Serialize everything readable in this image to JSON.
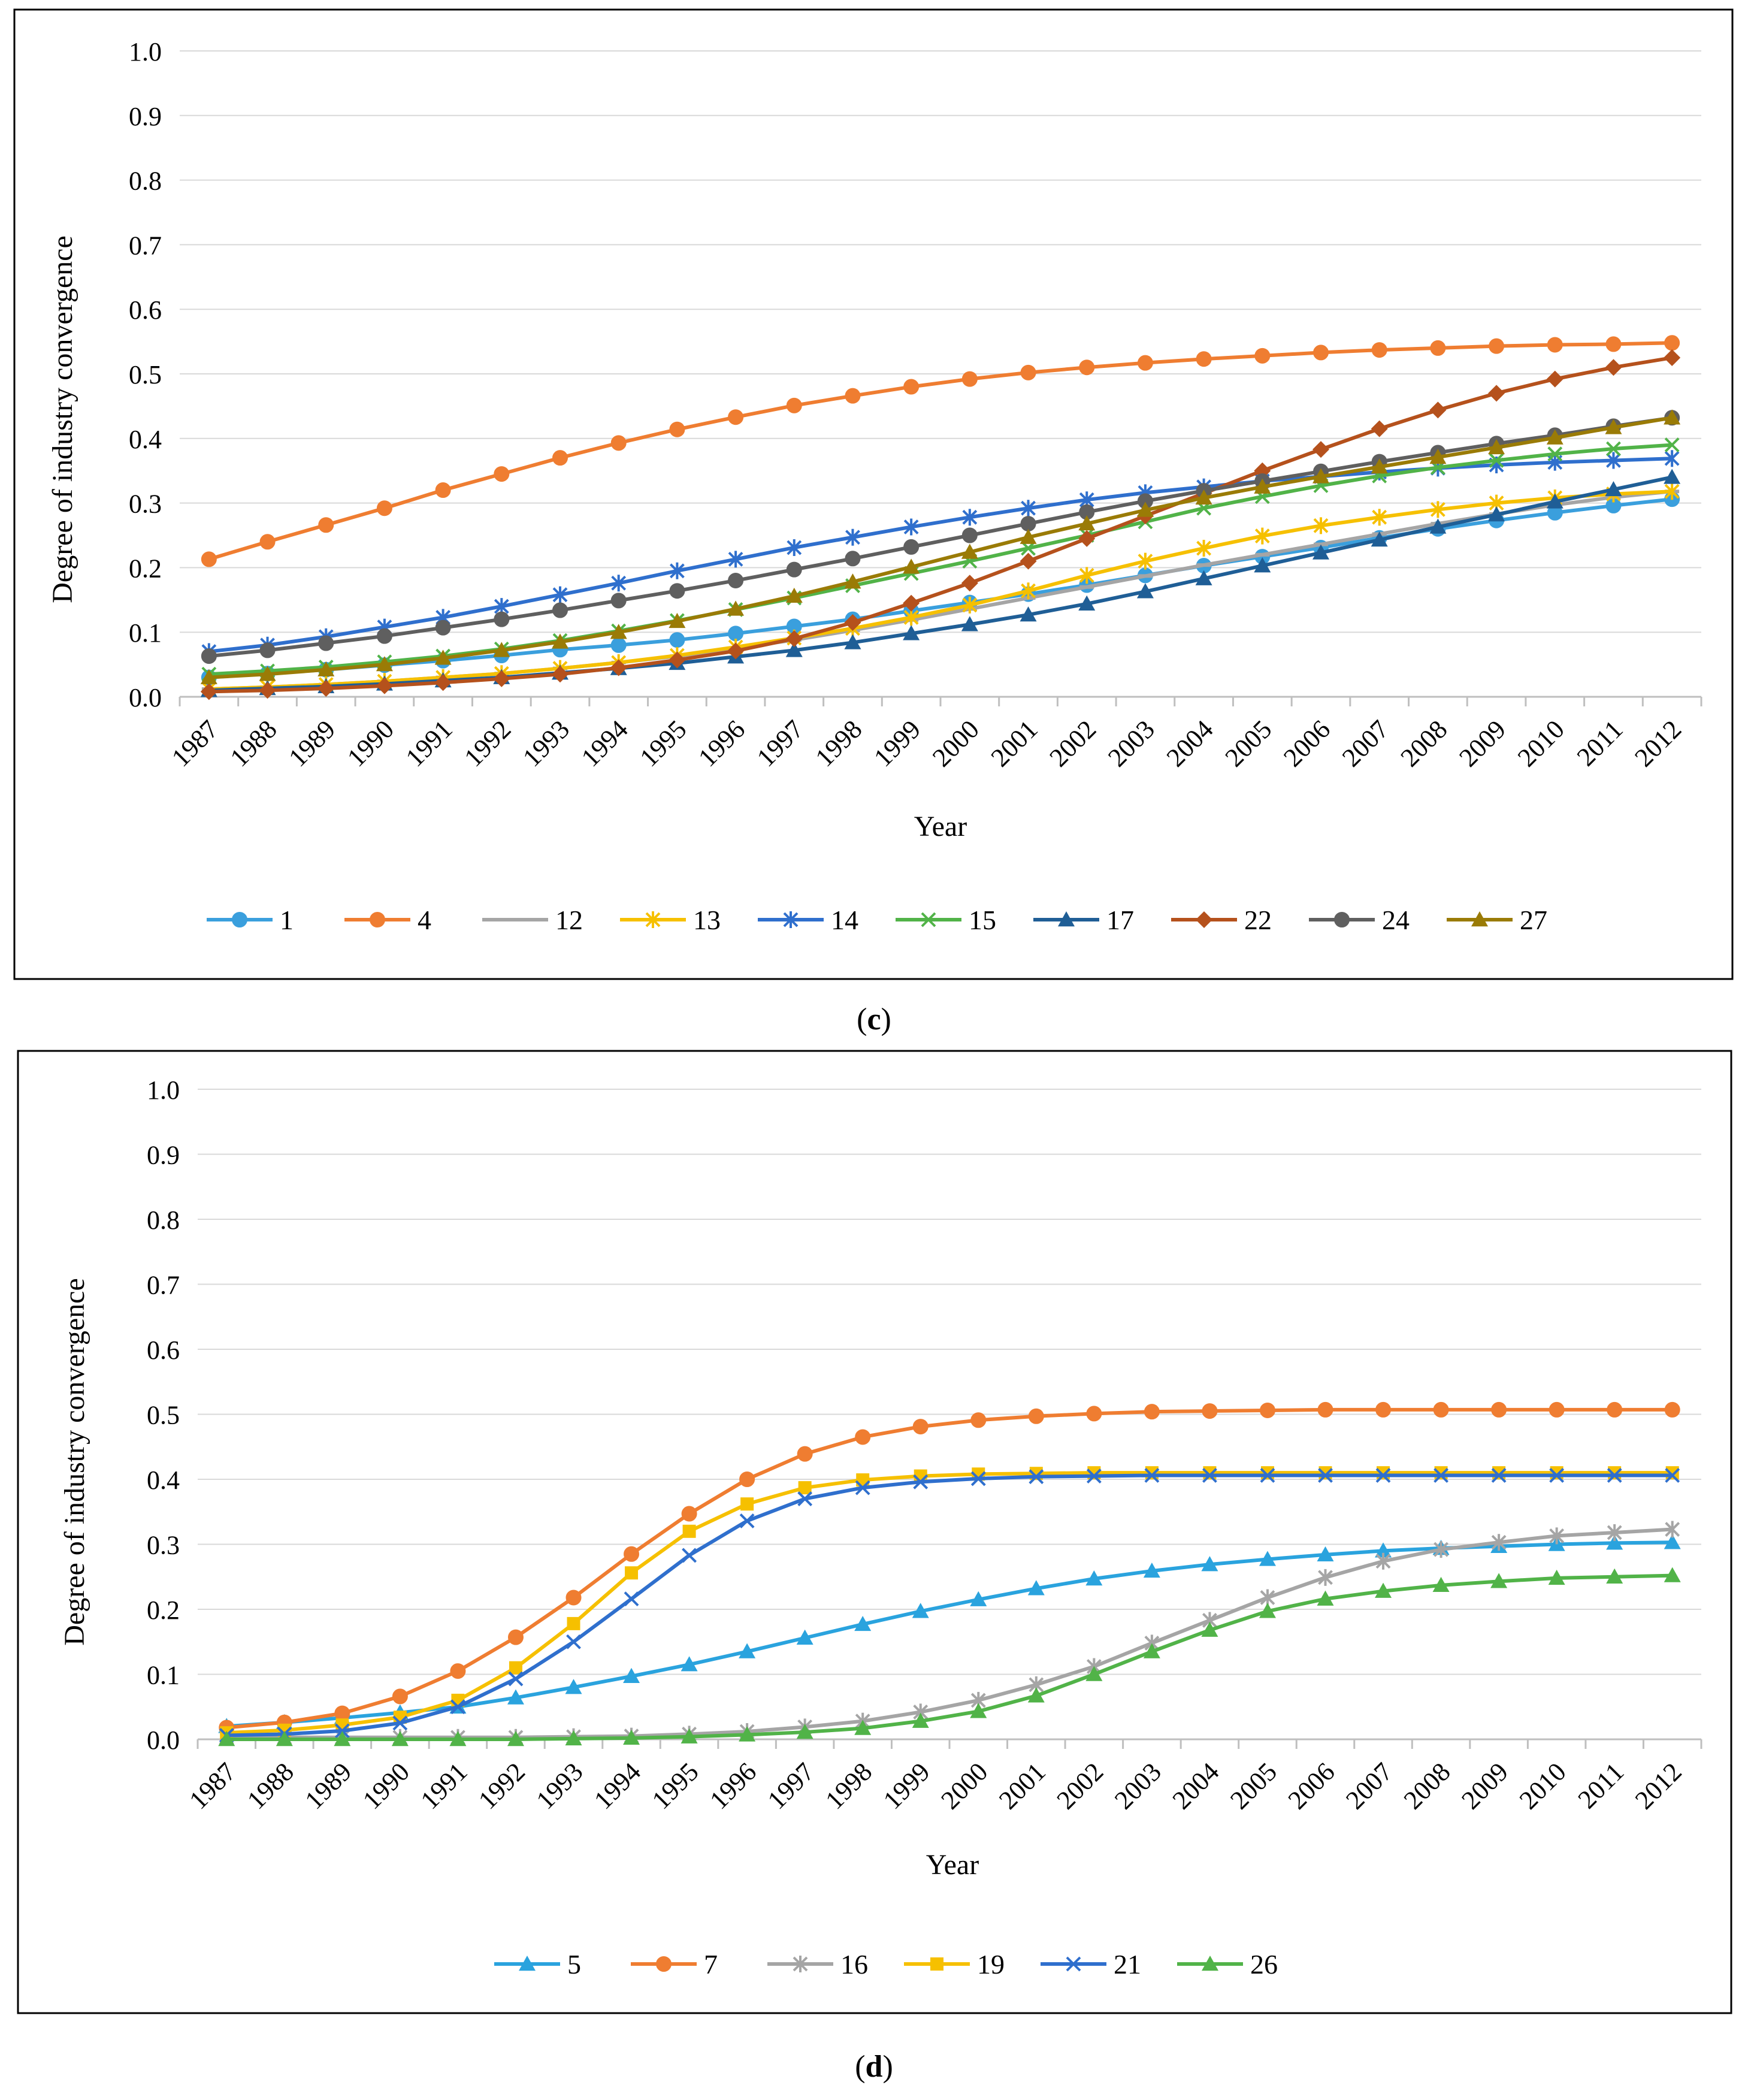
{
  "colors": {
    "s1": "#3a9fdd",
    "s4": "#ef7d31",
    "s12": "#a5a5a5",
    "s13": "#f6c000",
    "s14": "#2f6fcd",
    "s15": "#51b348",
    "s17": "#1f5e96",
    "s22": "#b5511c",
    "s24": "#5f5f5f",
    "s27": "#9a7b06",
    "d5": "#2aa3de",
    "d7": "#ef7d31",
    "d16": "#a5a5a5",
    "d19": "#f6c000",
    "d21": "#2f6fcd",
    "d26": "#51b348"
  },
  "chart_data": [
    {
      "type": "line",
      "panel_label": "c",
      "xlabel": "Year",
      "ylabel": "Degree of industry convergence",
      "ylim": [
        0,
        1
      ],
      "ytick_labels": [
        "0.0",
        "0.1",
        "0.2",
        "0.3",
        "0.4",
        "0.5",
        "0.6",
        "0.7",
        "0.8",
        "0.9",
        "1.0"
      ],
      "grid": true,
      "legend_position": "bottom",
      "categories": [
        "1987",
        "1988",
        "1989",
        "1990",
        "1991",
        "1992",
        "1993",
        "1994",
        "1995",
        "1996",
        "1997",
        "1998",
        "1999",
        "2000",
        "2001",
        "2002",
        "2003",
        "2004",
        "2005",
        "2006",
        "2007",
        "2008",
        "2009",
        "2010",
        "2011",
        "2012"
      ],
      "series": [
        {
          "name": "1",
          "color": "#3a9fdd",
          "marker": "circle",
          "values": [
            0.03,
            0.036,
            0.042,
            0.049,
            0.056,
            0.064,
            0.073,
            0.08,
            0.088,
            0.098,
            0.109,
            0.12,
            0.133,
            0.146,
            0.159,
            0.173,
            0.188,
            0.203,
            0.217,
            0.231,
            0.246,
            0.26,
            0.273,
            0.285,
            0.296,
            0.306
          ]
        },
        {
          "name": "4",
          "color": "#ef7d31",
          "marker": "circle",
          "values": [
            0.213,
            0.24,
            0.266,
            0.292,
            0.32,
            0.345,
            0.37,
            0.393,
            0.414,
            0.433,
            0.451,
            0.466,
            0.48,
            0.492,
            0.502,
            0.51,
            0.517,
            0.523,
            0.528,
            0.533,
            0.537,
            0.54,
            0.543,
            0.545,
            0.546,
            0.548
          ]
        },
        {
          "name": "12",
          "color": "#a5a5a5",
          "marker": "dash",
          "values": [
            0.012,
            0.015,
            0.019,
            0.024,
            0.03,
            0.036,
            0.044,
            0.053,
            0.063,
            0.075,
            0.088,
            0.103,
            0.119,
            0.136,
            0.153,
            0.17,
            0.187,
            0.204,
            0.22,
            0.236,
            0.252,
            0.268,
            0.283,
            0.297,
            0.309,
            0.318
          ]
        },
        {
          "name": "13",
          "color": "#f6c000",
          "marker": "star",
          "values": [
            0.012,
            0.015,
            0.019,
            0.024,
            0.03,
            0.036,
            0.044,
            0.053,
            0.064,
            0.077,
            0.091,
            0.106,
            0.123,
            0.142,
            0.164,
            0.188,
            0.21,
            0.23,
            0.249,
            0.265,
            0.278,
            0.29,
            0.3,
            0.308,
            0.314,
            0.318
          ]
        },
        {
          "name": "14",
          "color": "#2f6fcd",
          "marker": "star",
          "values": [
            0.07,
            0.08,
            0.093,
            0.108,
            0.123,
            0.14,
            0.158,
            0.176,
            0.195,
            0.213,
            0.231,
            0.247,
            0.263,
            0.278,
            0.292,
            0.305,
            0.316,
            0.325,
            0.334,
            0.341,
            0.348,
            0.354,
            0.359,
            0.363,
            0.366,
            0.369
          ]
        },
        {
          "name": "15",
          "color": "#51b348",
          "marker": "x",
          "values": [
            0.035,
            0.04,
            0.046,
            0.054,
            0.063,
            0.074,
            0.087,
            0.102,
            0.118,
            0.135,
            0.153,
            0.172,
            0.191,
            0.21,
            0.23,
            0.25,
            0.271,
            0.292,
            0.31,
            0.327,
            0.342,
            0.355,
            0.366,
            0.376,
            0.384,
            0.39
          ]
        },
        {
          "name": "17",
          "color": "#1f5e96",
          "marker": "triangle",
          "values": [
            0.01,
            0.013,
            0.016,
            0.02,
            0.025,
            0.03,
            0.037,
            0.044,
            0.052,
            0.062,
            0.072,
            0.084,
            0.098,
            0.112,
            0.127,
            0.144,
            0.163,
            0.183,
            0.203,
            0.223,
            0.243,
            0.263,
            0.282,
            0.302,
            0.321,
            0.34
          ]
        },
        {
          "name": "22",
          "color": "#b5511c",
          "marker": "diamond",
          "values": [
            0.008,
            0.01,
            0.013,
            0.017,
            0.022,
            0.028,
            0.035,
            0.045,
            0.057,
            0.071,
            0.09,
            0.115,
            0.145,
            0.176,
            0.21,
            0.245,
            0.28,
            0.315,
            0.35,
            0.383,
            0.415,
            0.444,
            0.47,
            0.492,
            0.51,
            0.525
          ]
        },
        {
          "name": "24",
          "color": "#5f5f5f",
          "marker": "circle",
          "values": [
            0.063,
            0.072,
            0.083,
            0.094,
            0.107,
            0.12,
            0.134,
            0.149,
            0.164,
            0.18,
            0.197,
            0.214,
            0.232,
            0.25,
            0.268,
            0.286,
            0.303,
            0.319,
            0.334,
            0.349,
            0.364,
            0.378,
            0.392,
            0.405,
            0.419,
            0.432
          ]
        },
        {
          "name": "27",
          "color": "#9a7b06",
          "marker": "triangle",
          "values": [
            0.03,
            0.035,
            0.042,
            0.05,
            0.06,
            0.072,
            0.085,
            0.1,
            0.117,
            0.136,
            0.156,
            0.178,
            0.201,
            0.224,
            0.247,
            0.268,
            0.289,
            0.308,
            0.325,
            0.341,
            0.356,
            0.371,
            0.386,
            0.401,
            0.417,
            0.432
          ]
        }
      ]
    },
    {
      "type": "line",
      "panel_label": "d",
      "xlabel": "Year",
      "ylabel": "Degree of industry convergence",
      "ylim": [
        0,
        1
      ],
      "ytick_labels": [
        "0.0",
        "0.1",
        "0.2",
        "0.3",
        "0.4",
        "0.5",
        "0.6",
        "0.7",
        "0.8",
        "0.9",
        "1.0"
      ],
      "grid": true,
      "legend_position": "bottom",
      "categories": [
        "1987",
        "1988",
        "1989",
        "1990",
        "1991",
        "1992",
        "1993",
        "1994",
        "1995",
        "1996",
        "1997",
        "1998",
        "1999",
        "2000",
        "2001",
        "2002",
        "2003",
        "2004",
        "2005",
        "2006",
        "2007",
        "2008",
        "2009",
        "2010",
        "2011",
        "2012"
      ],
      "series": [
        {
          "name": "5",
          "color": "#2aa3de",
          "marker": "triangle",
          "values": [
            0.02,
            0.026,
            0.033,
            0.041,
            0.05,
            0.064,
            0.08,
            0.097,
            0.115,
            0.135,
            0.156,
            0.177,
            0.197,
            0.215,
            0.232,
            0.247,
            0.259,
            0.269,
            0.277,
            0.284,
            0.29,
            0.294,
            0.297,
            0.3,
            0.302,
            0.303
          ]
        },
        {
          "name": "7",
          "color": "#ef7d31",
          "marker": "circle",
          "values": [
            0.018,
            0.026,
            0.04,
            0.066,
            0.105,
            0.157,
            0.218,
            0.285,
            0.347,
            0.4,
            0.439,
            0.465,
            0.481,
            0.491,
            0.497,
            0.501,
            0.504,
            0.505,
            0.506,
            0.507,
            0.507,
            0.507,
            0.507,
            0.507,
            0.507,
            0.507
          ]
        },
        {
          "name": "16",
          "color": "#a5a5a5",
          "marker": "star",
          "values": [
            0.003,
            0.003,
            0.003,
            0.003,
            0.003,
            0.003,
            0.004,
            0.005,
            0.008,
            0.012,
            0.019,
            0.028,
            0.042,
            0.06,
            0.084,
            0.112,
            0.148,
            0.183,
            0.218,
            0.249,
            0.274,
            0.292,
            0.303,
            0.313,
            0.318,
            0.323
          ]
        },
        {
          "name": "19",
          "color": "#f6c000",
          "marker": "square",
          "values": [
            0.01,
            0.014,
            0.022,
            0.034,
            0.06,
            0.11,
            0.178,
            0.256,
            0.32,
            0.362,
            0.387,
            0.399,
            0.405,
            0.408,
            0.409,
            0.41,
            0.41,
            0.41,
            0.41,
            0.41,
            0.41,
            0.41,
            0.41,
            0.41,
            0.41,
            0.41
          ]
        },
        {
          "name": "21",
          "color": "#2f6fcd",
          "marker": "x",
          "values": [
            0.006,
            0.008,
            0.013,
            0.025,
            0.05,
            0.093,
            0.15,
            0.216,
            0.283,
            0.336,
            0.37,
            0.387,
            0.396,
            0.401,
            0.404,
            0.405,
            0.406,
            0.406,
            0.406,
            0.406,
            0.406,
            0.406,
            0.406,
            0.406,
            0.406,
            0.406
          ]
        },
        {
          "name": "26",
          "color": "#51b348",
          "marker": "triangle",
          "values": [
            0.0,
            0.0,
            0.0,
            0.0,
            0.0,
            0.0,
            0.001,
            0.002,
            0.004,
            0.007,
            0.011,
            0.017,
            0.028,
            0.043,
            0.067,
            0.1,
            0.135,
            0.168,
            0.197,
            0.216,
            0.228,
            0.237,
            0.243,
            0.248,
            0.25,
            0.252
          ]
        }
      ]
    }
  ]
}
